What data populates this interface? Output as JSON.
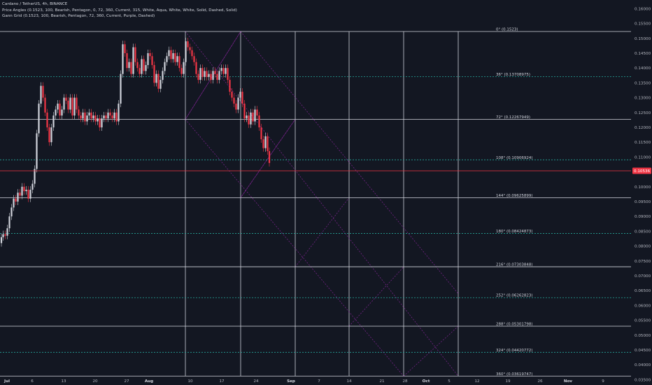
{
  "legend": {
    "symbol": "Cardano / TetherUS, 4h, BINANCE",
    "indicator1": "Price Angles (0.1523, 100, Bearish, Pentagon, 0, 72, 360, Current, 315, White, Aqua, White, White, Solid, Dashed, Solid)",
    "indicator2": "Gann Grid (0.1523, 100, Bearish, Pentagon, 72, 360, Current, Purple, Dashed)"
  },
  "colors": {
    "background": "#131722",
    "up_candle": "#d1d4dc",
    "down_candle": "#f23645",
    "solid_level": "#d1d4dc",
    "dashed_level": "#26a69a",
    "grid_diag": "#9c27b0",
    "current_price_line": "#f23645"
  },
  "chart_data": {
    "type": "candlestick",
    "symbol": "Cardano / TetherUS",
    "timeframe": "4h",
    "exchange": "BINANCE",
    "ylim": [
      0.0365,
      0.1615
    ],
    "y_ticks": [
      "0.16000",
      "0.15500",
      "0.15000",
      "0.14500",
      "0.14000",
      "0.13500",
      "0.13000",
      "0.12500",
      "0.12000",
      "0.11500",
      "0.11000",
      "0.10500",
      "0.10000",
      "0.09500",
      "0.09000",
      "0.08500",
      "0.08000",
      "0.07500",
      "0.07000",
      "0.06500",
      "0.06000",
      "0.05500",
      "0.05000",
      "0.04500",
      "0.04000",
      "0.03500"
    ],
    "x_ticks": [
      {
        "label": "Jul",
        "month": true
      },
      {
        "label": "6"
      },
      {
        "label": "13"
      },
      {
        "label": "20"
      },
      {
        "label": "27"
      },
      {
        "label": "Aug",
        "month": true
      },
      {
        "label": "10"
      },
      {
        "label": "17"
      },
      {
        "label": "24"
      },
      {
        "label": "Sep",
        "month": true
      },
      {
        "label": "7"
      },
      {
        "label": "14"
      },
      {
        "label": "21"
      },
      {
        "label": "28"
      },
      {
        "label": "Oct",
        "month": true
      },
      {
        "label": "5"
      },
      {
        "label": "12"
      },
      {
        "label": "19"
      },
      {
        "label": "26"
      },
      {
        "label": "Nov",
        "month": true
      },
      {
        "label": "9"
      }
    ],
    "current_price": "0.10536",
    "levels": [
      {
        "label": "0° (0.1523)",
        "value": 0.1523,
        "style": "solid"
      },
      {
        "label": "36° (0.13708975)",
        "value": 0.13708975,
        "style": "dashed"
      },
      {
        "label": "72° (0.12267949)",
        "value": 0.12267949,
        "style": "solid"
      },
      {
        "label": "108° (0.10906924)",
        "value": 0.10906924,
        "style": "dashed"
      },
      {
        "label": "144° (0.09625899)",
        "value": 0.09625899,
        "style": "solid"
      },
      {
        "label": "180° (0.08424873)",
        "value": 0.08424873,
        "style": "dashed"
      },
      {
        "label": "216° (0.07303848)",
        "value": 0.07303848,
        "style": "solid"
      },
      {
        "label": "252° (0.06262823)",
        "value": 0.06262823,
        "style": "dashed"
      },
      {
        "label": "288° (0.05301798)",
        "value": 0.05301798,
        "style": "solid"
      },
      {
        "label": "324° (0.04420772)",
        "value": 0.04420772,
        "style": "dashed"
      },
      {
        "label": "360° (0.03619747)",
        "value": 0.03619747,
        "style": "solid"
      }
    ],
    "price_path": [
      [
        1,
        0.081
      ],
      [
        3,
        0.083
      ],
      [
        6,
        0.084
      ],
      [
        9,
        0.0835
      ],
      [
        12,
        0.086
      ],
      [
        15,
        0.09
      ],
      [
        18,
        0.093
      ],
      [
        21,
        0.096
      ],
      [
        24,
        0.095
      ],
      [
        27,
        0.098
      ],
      [
        30,
        0.097
      ],
      [
        33,
        0.1
      ],
      [
        36,
        0.0985
      ],
      [
        39,
        0.099
      ],
      [
        42,
        0.096
      ],
      [
        45,
        0.099
      ],
      [
        48,
        0.101
      ],
      [
        51,
        0.106
      ],
      [
        54,
        0.118
      ],
      [
        57,
        0.128
      ],
      [
        60,
        0.134
      ],
      [
        63,
        0.13
      ],
      [
        66,
        0.125
      ],
      [
        69,
        0.12
      ],
      [
        72,
        0.115
      ],
      [
        75,
        0.12
      ],
      [
        78,
        0.124
      ],
      [
        81,
        0.126
      ],
      [
        84,
        0.128
      ],
      [
        87,
        0.124
      ],
      [
        90,
        0.126
      ],
      [
        93,
        0.13
      ],
      [
        96,
        0.129
      ],
      [
        99,
        0.126
      ],
      [
        102,
        0.13
      ],
      [
        105,
        0.124
      ],
      [
        108,
        0.13
      ],
      [
        111,
        0.126
      ],
      [
        114,
        0.124
      ],
      [
        117,
        0.123
      ],
      [
        120,
        0.125
      ],
      [
        123,
        0.122
      ],
      [
        126,
        0.124
      ],
      [
        129,
        0.125
      ],
      [
        132,
        0.123
      ],
      [
        135,
        0.124
      ],
      [
        138,
        0.122
      ],
      [
        141,
        0.123
      ],
      [
        144,
        0.12
      ],
      [
        147,
        0.123
      ],
      [
        150,
        0.124
      ],
      [
        153,
        0.123
      ],
      [
        156,
        0.125
      ],
      [
        159,
        0.124
      ],
      [
        162,
        0.123
      ],
      [
        165,
        0.125
      ],
      [
        168,
        0.122
      ],
      [
        171,
        0.128
      ],
      [
        174,
        0.138
      ],
      [
        177,
        0.148
      ],
      [
        180,
        0.145
      ],
      [
        183,
        0.14
      ],
      [
        186,
        0.142
      ],
      [
        189,
        0.138
      ],
      [
        192,
        0.147
      ],
      [
        195,
        0.142
      ],
      [
        198,
        0.14
      ],
      [
        201,
        0.138
      ],
      [
        204,
        0.143
      ],
      [
        207,
        0.139
      ],
      [
        210,
        0.141
      ],
      [
        213,
        0.145
      ],
      [
        216,
        0.144
      ],
      [
        219,
        0.141
      ],
      [
        222,
        0.135
      ],
      [
        225,
        0.138
      ],
      [
        228,
        0.133
      ],
      [
        231,
        0.136
      ],
      [
        234,
        0.139
      ],
      [
        237,
        0.142
      ],
      [
        240,
        0.144
      ],
      [
        243,
        0.146
      ],
      [
        246,
        0.143
      ],
      [
        249,
        0.145
      ],
      [
        252,
        0.142
      ],
      [
        255,
        0.144
      ],
      [
        258,
        0.14
      ],
      [
        261,
        0.138
      ],
      [
        264,
        0.142
      ],
      [
        267,
        0.149
      ],
      [
        270,
        0.147
      ],
      [
        273,
        0.146
      ],
      [
        276,
        0.144
      ],
      [
        279,
        0.142
      ],
      [
        282,
        0.138
      ],
      [
        285,
        0.136
      ],
      [
        288,
        0.14
      ],
      [
        291,
        0.137
      ],
      [
        294,
        0.139
      ],
      [
        297,
        0.137
      ],
      [
        300,
        0.138
      ],
      [
        303,
        0.136
      ],
      [
        306,
        0.139
      ],
      [
        309,
        0.138
      ],
      [
        312,
        0.136
      ],
      [
        315,
        0.139
      ],
      [
        318,
        0.14
      ],
      [
        321,
        0.138
      ],
      [
        324,
        0.14
      ],
      [
        327,
        0.136
      ],
      [
        330,
        0.132
      ],
      [
        333,
        0.13
      ],
      [
        336,
        0.128
      ],
      [
        339,
        0.126
      ],
      [
        342,
        0.13
      ],
      [
        345,
        0.132
      ],
      [
        348,
        0.128
      ],
      [
        351,
        0.123
      ],
      [
        354,
        0.124
      ],
      [
        357,
        0.121
      ],
      [
        360,
        0.125
      ],
      [
        363,
        0.122
      ],
      [
        366,
        0.126
      ],
      [
        369,
        0.124
      ],
      [
        372,
        0.12
      ],
      [
        375,
        0.116
      ],
      [
        378,
        0.113
      ],
      [
        381,
        0.117
      ],
      [
        384,
        0.112
      ],
      [
        386,
        0.108
      ]
    ]
  }
}
